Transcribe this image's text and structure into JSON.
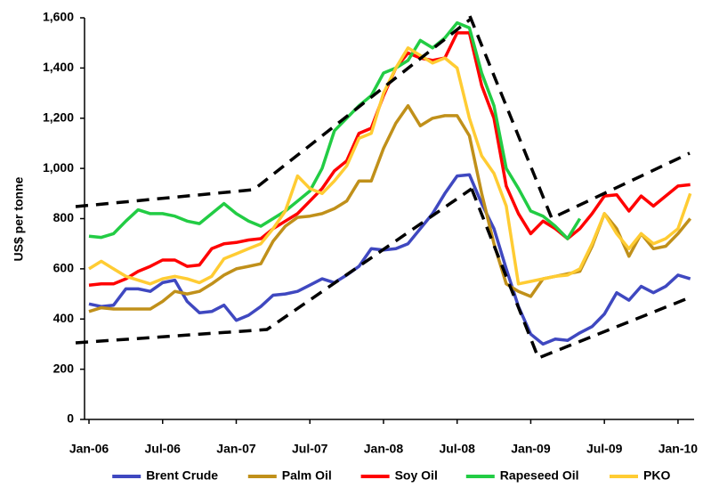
{
  "chart_data": {
    "type": "line",
    "y_label": "US$ per tonne",
    "categories": [
      "Jan-06",
      null,
      null,
      null,
      null,
      null,
      "Jul-06",
      null,
      null,
      null,
      null,
      null,
      "Jan-07",
      null,
      null,
      null,
      null,
      null,
      "Jul-07",
      null,
      null,
      null,
      null,
      null,
      "Jan-08",
      null,
      null,
      null,
      null,
      null,
      "Jul-08",
      null,
      null,
      null,
      null,
      null,
      "Jan-09",
      null,
      null,
      null,
      null,
      null,
      "Jul-09",
      null,
      null,
      null,
      null,
      null,
      "Jan-10",
      null
    ],
    "ylim": [
      0,
      1600
    ],
    "yticks": [
      0,
      200,
      400,
      600,
      800,
      {
        "value": 1000,
        "label": "1,000"
      },
      {
        "value": 1200,
        "label": "1,200"
      },
      {
        "value": 1400,
        "label": "1,400"
      },
      {
        "value": 1600,
        "label": "1,600"
      }
    ],
    "grid": false,
    "legend": "bottom",
    "series": [
      {
        "name": "Brent Crude",
        "color": "#3f48c0",
        "values": [
          460,
          450,
          455,
          520,
          520,
          510,
          545,
          555,
          470,
          425,
          430,
          455,
          395,
          415,
          450,
          495,
          500,
          510,
          535,
          560,
          545,
          575,
          610,
          680,
          675,
          680,
          700,
          760,
          820,
          900,
          970,
          975,
          860,
          760,
          600,
          450,
          340,
          300,
          320,
          315,
          345,
          370,
          420,
          505,
          475,
          530,
          505,
          530,
          575,
          560
        ]
      },
      {
        "name": "Palm Oil",
        "color": "#c0901a",
        "values": [
          430,
          445,
          440,
          440,
          440,
          440,
          470,
          510,
          500,
          510,
          540,
          575,
          600,
          610,
          620,
          710,
          770,
          805,
          810,
          820,
          840,
          870,
          950,
          950,
          1080,
          1180,
          1250,
          1170,
          1200,
          1210,
          1210,
          1130,
          900,
          700,
          540,
          510,
          490,
          560,
          570,
          580,
          590,
          690,
          820,
          760,
          650,
          740,
          680,
          690,
          740,
          800
        ]
      },
      {
        "name": "Soy Oil",
        "color": "#ff0000",
        "values": [
          535,
          540,
          540,
          560,
          590,
          610,
          635,
          635,
          610,
          615,
          680,
          700,
          705,
          715,
          720,
          760,
          790,
          820,
          870,
          920,
          990,
          1030,
          1140,
          1160,
          1290,
          1400,
          1460,
          1440,
          1430,
          1440,
          1540,
          1540,
          1330,
          1200,
          930,
          820,
          740,
          790,
          760,
          720,
          760,
          820,
          890,
          895,
          830,
          890,
          850,
          890,
          930,
          935
        ]
      },
      {
        "name": "Rapeseed Oil",
        "color": "#22cc44",
        "values": [
          730,
          725,
          740,
          790,
          835,
          820,
          820,
          810,
          790,
          780,
          820,
          860,
          820,
          790,
          770,
          800,
          830,
          870,
          910,
          1000,
          1150,
          1200,
          1250,
          1290,
          1380,
          1400,
          1430,
          1510,
          1480,
          1520,
          1580,
          1560,
          1380,
          1250,
          1000,
          920,
          830,
          810,
          770,
          720,
          800,
          null,
          null,
          null,
          null,
          null,
          null,
          null,
          null,
          null
        ]
      },
      {
        "name": "PKO",
        "color": "#ffcc33",
        "values": [
          600,
          630,
          600,
          570,
          555,
          540,
          560,
          570,
          560,
          545,
          570,
          640,
          660,
          680,
          700,
          760,
          830,
          970,
          920,
          900,
          950,
          1010,
          1120,
          1140,
          1300,
          1400,
          1480,
          1450,
          1420,
          1440,
          1400,
          1200,
          1050,
          980,
          850,
          540,
          550,
          560,
          570,
          575,
          600,
          700,
          820,
          740,
          680,
          740,
          700,
          720,
          760,
          900
        ]
      }
    ]
  }
}
